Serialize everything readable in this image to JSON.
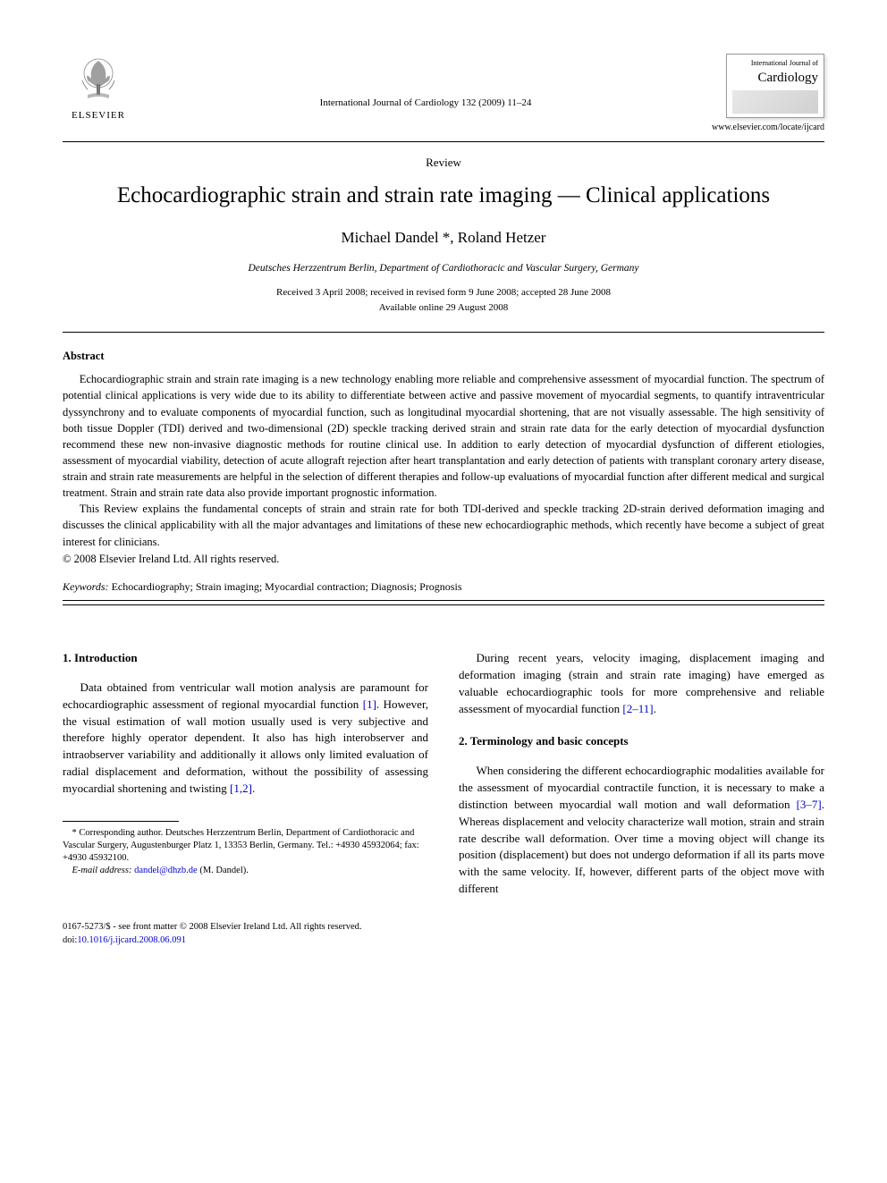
{
  "header": {
    "publisher": "ELSEVIER",
    "journal_ref": "International Journal of Cardiology 132 (2009) 11–24",
    "cover_small": "International Journal of",
    "cover_title": "Cardiology",
    "journal_url": "www.elsevier.com/locate/ijcard"
  },
  "article": {
    "type": "Review",
    "title": "Echocardiographic strain and strain rate imaging — Clinical applications",
    "authors": "Michael Dandel *, Roland Hetzer",
    "affiliation": "Deutsches Herzzentrum Berlin, Department of Cardiothoracic and Vascular Surgery, Germany",
    "dates_line1": "Received 3 April 2008; received in revised form 9 June 2008; accepted 28 June 2008",
    "dates_line2": "Available online 29 August 2008"
  },
  "abstract": {
    "label": "Abstract",
    "p1": "Echocardiographic strain and strain rate imaging is a new technology enabling more reliable and comprehensive assessment of myocardial function. The spectrum of potential clinical applications is very wide due to its ability to differentiate between active and passive movement of myocardial segments, to quantify intraventricular dyssynchrony and to evaluate components of myocardial function, such as longitudinal myocardial shortening, that are not visually assessable. The high sensitivity of both tissue Doppler (TDI) derived and two-dimensional (2D) speckle tracking derived strain and strain rate data for the early detection of myocardial dysfunction recommend these new non-invasive diagnostic methods for routine clinical use. In addition to early detection of myocardial dysfunction of different etiologies, assessment of myocardial viability, detection of acute allograft rejection after heart transplantation and early detection of patients with transplant coronary artery disease, strain and strain rate measurements are helpful in the selection of different therapies and follow-up evaluations of myocardial function after different medical and surgical treatment. Strain and strain rate data also provide important prognostic information.",
    "p2": "This Review explains the fundamental concepts of strain and strain rate for both TDI-derived and speckle tracking 2D-strain derived deformation imaging and discusses the clinical applicability with all the major advantages and limitations of these new echocardiographic methods, which recently have become a subject of great interest for clinicians.",
    "copyright": "© 2008 Elsevier Ireland Ltd. All rights reserved."
  },
  "keywords": {
    "label": "Keywords:",
    "text": " Echocardiography; Strain imaging; Myocardial contraction; Diagnosis; Prognosis"
  },
  "body": {
    "sec1_head": "1. Introduction",
    "sec1_p1a": "Data obtained from ventricular wall motion analysis are paramount for echocardiographic assessment of regional myocardial function ",
    "ref1": "[1]",
    "sec1_p1b": ". However, the visual estimation of wall motion usually used is very subjective and therefore highly operator dependent. It also has high interobserver and intraobserver variability and additionally it allows only limited evaluation of radial displacement and deformation, without the possibility of assessing myocardial shortening and twisting ",
    "ref12": "[1,2]",
    "period": ".",
    "sec1_p2a": "During recent years, velocity imaging, displacement imaging and deformation imaging (strain and strain rate imaging) have emerged as valuable echocardiographic tools for more comprehensive and reliable assessment of myocardial function ",
    "ref2_11": "[2–11]",
    "sec2_head": "2. Terminology and basic concepts",
    "sec2_p1a": "When considering the different echocardiographic modalities available for the assessment of myocardial contractile function, it is necessary to make a distinction between myocardial wall motion and wall deformation ",
    "ref3_7": "[3–7]",
    "sec2_p1b": ". Whereas displacement and velocity characterize wall motion, strain and strain rate describe wall deformation. Over time a moving object will change its position (displacement) but does not undergo deformation if all its parts move with the same velocity. If, however, different parts of the object move with different"
  },
  "footnote": {
    "corr": "* Corresponding author. Deutsches Herzzentrum Berlin, Department of Cardiothoracic and Vascular Surgery, Augustenburger Platz 1, 13353 Berlin, Germany. Tel.: +4930 45932064; fax: +4930 45932100.",
    "email_label": "E-mail address:",
    "email": "dandel@dhzb.de",
    "email_author": " (M. Dandel)."
  },
  "footer": {
    "line": "0167-5273/$ - see front matter © 2008 Elsevier Ireland Ltd. All rights reserved.",
    "doi": "doi:10.1016/j.ijcard.2008.06.091"
  },
  "colors": {
    "link": "#0000cc",
    "text": "#000000",
    "bg": "#ffffff"
  }
}
